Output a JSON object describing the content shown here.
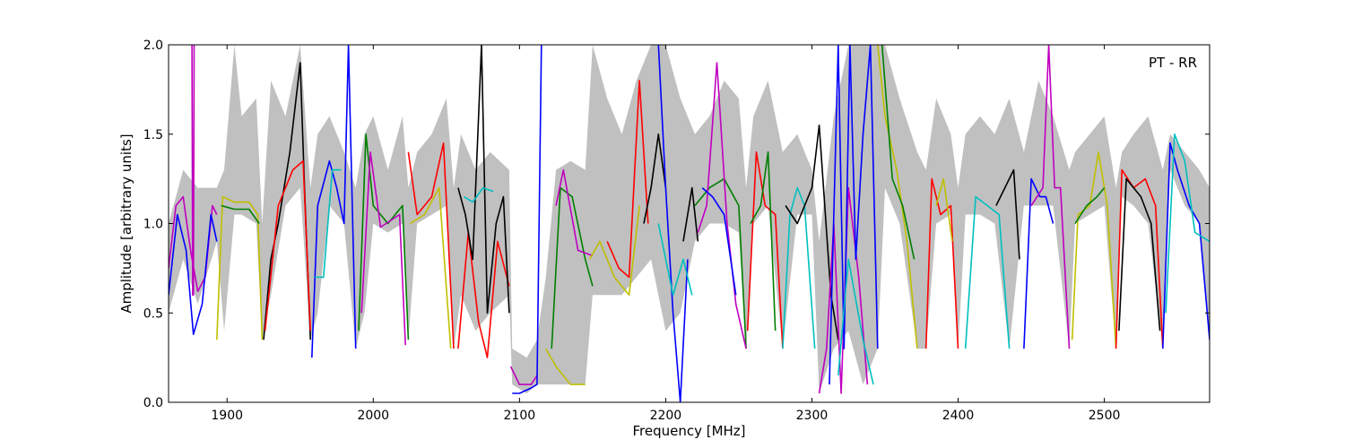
{
  "chart_data": {
    "type": "line",
    "title": "",
    "annotation": "PT - RR",
    "xlabel": "Frequency [MHz]",
    "ylabel": "Amplitude [arbitrary units]",
    "xlim": [
      1860,
      2572
    ],
    "ylim": [
      0.0,
      2.0
    ],
    "x_ticks": [
      1900,
      2000,
      2100,
      2200,
      2300,
      2400,
      2500
    ],
    "y_ticks": [
      0.0,
      0.5,
      1.0,
      1.5,
      2.0
    ],
    "x_tick_labels": [
      "1900",
      "2000",
      "2100",
      "2200",
      "2300",
      "2400",
      "2500"
    ],
    "y_tick_labels": [
      "0.0",
      "0.5",
      "1.0",
      "1.5",
      "2.0"
    ],
    "grid": false,
    "legend": "none",
    "band_color": "#c0c0c0",
    "series": [
      {
        "color": "#bf00bf",
        "x": [
          1860,
          1865,
          1870,
          1875,
          1880,
          1885,
          1890,
          1893
        ],
        "y": [
          0.75,
          1.1,
          1.15,
          0.85,
          0.62,
          0.7,
          1.1,
          1.05
        ]
      },
      {
        "color": "#0000ff",
        "x": [
          1860,
          1866,
          1872,
          1877,
          1883,
          1889,
          1893
        ],
        "y": [
          0.6,
          1.05,
          0.85,
          0.38,
          0.55,
          1.05,
          0.9
        ]
      },
      {
        "color": "#bf00bf",
        "x": [
          1876,
          1876.5,
          1877,
          1877.5
        ],
        "y": [
          2.0,
          0.6,
          0.6,
          2.0
        ]
      },
      {
        "color": "#bfbf00",
        "x": [
          1893,
          1897,
          1905,
          1915,
          1921,
          1924
        ],
        "y": [
          0.35,
          1.15,
          1.12,
          1.12,
          1.05,
          0.35
        ]
      },
      {
        "color": "#007f00",
        "x": [
          1896,
          1905,
          1915,
          1922
        ],
        "y": [
          1.1,
          1.08,
          1.08,
          1.0
        ]
      },
      {
        "color": "#000000",
        "x": [
          1925,
          1930,
          1935,
          1943,
          1950,
          1953,
          1957
        ],
        "y": [
          0.35,
          0.8,
          1.0,
          1.4,
          1.9,
          1.2,
          0.35
        ]
      },
      {
        "color": "#ff0000",
        "x": [
          1926,
          1935,
          1945,
          1952,
          1957
        ],
        "y": [
          0.4,
          1.1,
          1.3,
          1.35,
          0.4
        ]
      },
      {
        "color": "#0000ff",
        "x": [
          1958,
          1962,
          1970,
          1975,
          1980,
          1983,
          1988
        ],
        "y": [
          0.25,
          1.1,
          1.35,
          1.2,
          1.0,
          2.0,
          0.3
        ]
      },
      {
        "color": "#00bfbf",
        "x": [
          1960,
          1966,
          1972,
          1978
        ],
        "y": [
          0.7,
          0.7,
          1.3,
          1.3
        ]
      },
      {
        "color": "#007f00",
        "x": [
          1990,
          1995,
          2000,
          2010,
          2020,
          2024
        ],
        "y": [
          0.4,
          1.5,
          1.1,
          1.0,
          1.1,
          0.35
        ]
      },
      {
        "color": "#bf00bf",
        "x": [
          1992,
          1998,
          2005,
          2018,
          2022
        ],
        "y": [
          0.5,
          1.4,
          0.98,
          1.05,
          0.32
        ]
      },
      {
        "color": "#ff0000",
        "x": [
          2024,
          2030,
          2040,
          2048,
          2055
        ],
        "y": [
          1.4,
          1.05,
          1.15,
          1.45,
          0.3
        ]
      },
      {
        "color": "#bfbf00",
        "x": [
          2025,
          2035,
          2045,
          2053
        ],
        "y": [
          1.0,
          1.05,
          1.2,
          0.3
        ]
      },
      {
        "color": "#ff0000",
        "x": [
          2058,
          2065,
          2072,
          2078,
          2085,
          2093
        ],
        "y": [
          0.3,
          0.95,
          0.45,
          0.25,
          0.9,
          0.65
        ]
      },
      {
        "color": "#000000",
        "x": [
          2058,
          2063,
          2068,
          2074,
          2078,
          2084,
          2089,
          2093
        ],
        "y": [
          1.2,
          1.05,
          0.8,
          2.0,
          0.5,
          1.0,
          1.15,
          0.5
        ]
      },
      {
        "color": "#00bfbf",
        "x": [
          2062,
          2068,
          2075,
          2082
        ],
        "y": [
          1.15,
          1.12,
          1.2,
          1.18
        ]
      },
      {
        "color": "#bf00bf",
        "x": [
          2094,
          2100,
          2108,
          2112
        ],
        "y": [
          0.2,
          0.1,
          0.1,
          0.15
        ]
      },
      {
        "color": "#0000ff",
        "x": [
          2095,
          2100,
          2108,
          2112,
          2115
        ],
        "y": [
          0.05,
          0.05,
          0.08,
          0.1,
          2.0
        ]
      },
      {
        "color": "#bfbf00",
        "x": [
          2118,
          2125,
          2135,
          2145
        ],
        "y": [
          0.3,
          0.2,
          0.1,
          0.1
        ]
      },
      {
        "color": "#007f00",
        "x": [
          2122,
          2128,
          2136,
          2145,
          2150
        ],
        "y": [
          0.3,
          1.2,
          1.15,
          0.8,
          0.65
        ]
      },
      {
        "color": "#bf00bf",
        "x": [
          2125,
          2130,
          2140,
          2150
        ],
        "y": [
          1.1,
          1.3,
          0.85,
          0.82
        ]
      },
      {
        "color": "#bfbf00",
        "x": [
          2148,
          2155,
          2165,
          2175,
          2182
        ],
        "y": [
          0.8,
          0.9,
          0.7,
          0.6,
          1.1
        ]
      },
      {
        "color": "#ff0000",
        "x": [
          2160,
          2168,
          2175,
          2182,
          2188
        ],
        "y": [
          0.9,
          0.75,
          0.7,
          1.8,
          1.0
        ]
      },
      {
        "color": "#000000",
        "x": [
          2185,
          2190,
          2195,
          2200
        ],
        "y": [
          1.0,
          1.2,
          1.5,
          1.2
        ]
      },
      {
        "color": "#0000ff",
        "x": [
          2195,
          2200,
          2205,
          2210,
          2215
        ],
        "y": [
          2.0,
          1.2,
          0.5,
          0.0,
          0.8
        ]
      },
      {
        "color": "#00bfbf",
        "x": [
          2195,
          2205,
          2212,
          2218
        ],
        "y": [
          1.0,
          0.6,
          0.8,
          0.6
        ]
      },
      {
        "color": "#000000",
        "x": [
          2212,
          2218,
          2222
        ],
        "y": [
          0.9,
          1.2,
          0.9
        ]
      },
      {
        "color": "#007f00",
        "x": [
          2220,
          2230,
          2240,
          2250,
          2255
        ],
        "y": [
          1.1,
          1.2,
          1.25,
          1.1,
          0.3
        ]
      },
      {
        "color": "#bf00bf",
        "x": [
          2222,
          2228,
          2235,
          2242,
          2248,
          2255
        ],
        "y": [
          0.95,
          1.1,
          1.9,
          1.0,
          0.55,
          0.3
        ]
      },
      {
        "color": "#0000ff",
        "x": [
          2225,
          2232,
          2240,
          2248
        ],
        "y": [
          1.2,
          1.15,
          1.05,
          0.6
        ]
      },
      {
        "color": "#ff0000",
        "x": [
          2256,
          2262,
          2268,
          2275,
          2280
        ],
        "y": [
          0.4,
          1.4,
          1.1,
          1.05,
          0.3
        ]
      },
      {
        "color": "#007f00",
        "x": [
          2258,
          2265,
          2270,
          2275
        ],
        "y": [
          1.0,
          1.1,
          1.4,
          0.4
        ]
      },
      {
        "color": "#00bfbf",
        "x": [
          2280,
          2285,
          2290,
          2295,
          2302
        ],
        "y": [
          0.3,
          1.05,
          1.2,
          1.1,
          0.3
        ]
      },
      {
        "color": "#000000",
        "x": [
          2282,
          2290,
          2300,
          2305,
          2313,
          2318
        ],
        "y": [
          1.1,
          1.0,
          1.2,
          1.55,
          0.6,
          0.35
        ]
      },
      {
        "color": "#bf00bf",
        "x": [
          2305,
          2310,
          2315,
          2320,
          2325,
          2332,
          2338
        ],
        "y": [
          0.05,
          0.3,
          1.0,
          0.05,
          1.2,
          0.7,
          0.1
        ]
      },
      {
        "color": "#0000ff",
        "x": [
          2312,
          2318,
          2322,
          2326,
          2330,
          2335,
          2340,
          2345
        ],
        "y": [
          0.1,
          2.0,
          0.3,
          2.0,
          0.8,
          1.5,
          2.0,
          0.3
        ]
      },
      {
        "color": "#00bfbf",
        "x": [
          2318,
          2325,
          2335,
          2342
        ],
        "y": [
          0.15,
          0.8,
          0.35,
          0.1
        ]
      },
      {
        "color": "#bfbf00",
        "x": [
          2345,
          2350,
          2358,
          2365,
          2372
        ],
        "y": [
          2.0,
          1.6,
          1.3,
          0.9,
          0.3
        ]
      },
      {
        "color": "#007f00",
        "x": [
          2348,
          2355,
          2362,
          2370
        ],
        "y": [
          2.0,
          1.25,
          1.1,
          0.8
        ]
      },
      {
        "color": "#ff0000",
        "x": [
          2378,
          2382,
          2388,
          2395,
          2400
        ],
        "y": [
          0.3,
          1.25,
          1.05,
          1.1,
          0.3
        ]
      },
      {
        "color": "#bfbf00",
        "x": [
          2385,
          2390,
          2396
        ],
        "y": [
          1.1,
          1.25,
          0.9
        ]
      },
      {
        "color": "#00bfbf",
        "x": [
          2405,
          2412,
          2420,
          2428,
          2435
        ],
        "y": [
          0.3,
          1.15,
          1.1,
          1.05,
          0.3
        ]
      },
      {
        "color": "#000000",
        "x": [
          2426,
          2432,
          2438,
          2442
        ],
        "y": [
          1.1,
          1.2,
          1.3,
          0.8
        ]
      },
      {
        "color": "#0000ff",
        "x": [
          2445,
          2450,
          2456,
          2460,
          2465
        ],
        "y": [
          0.3,
          1.25,
          1.15,
          1.15,
          1.0
        ]
      },
      {
        "color": "#bf00bf",
        "x": [
          2450,
          2458,
          2462,
          2466,
          2470,
          2476
        ],
        "y": [
          1.1,
          1.2,
          2.0,
          1.2,
          1.2,
          0.3
        ]
      },
      {
        "color": "#bfbf00",
        "x": [
          2478,
          2482,
          2490,
          2496,
          2502,
          2508
        ],
        "y": [
          0.35,
          1.05,
          1.1,
          1.4,
          1.1,
          0.3
        ]
      },
      {
        "color": "#007f00",
        "x": [
          2480,
          2488,
          2495,
          2500
        ],
        "y": [
          1.0,
          1.1,
          1.15,
          1.2
        ]
      },
      {
        "color": "#ff0000",
        "x": [
          2508,
          2512,
          2520,
          2528,
          2535,
          2540
        ],
        "y": [
          0.3,
          1.3,
          1.2,
          1.25,
          1.1,
          0.3
        ]
      },
      {
        "color": "#000000",
        "x": [
          2510,
          2515,
          2525,
          2532,
          2538
        ],
        "y": [
          0.4,
          1.25,
          1.15,
          1.0,
          0.4
        ]
      },
      {
        "color": "#0000ff",
        "x": [
          2540,
          2545,
          2550,
          2558,
          2565,
          2572
        ],
        "y": [
          0.3,
          1.45,
          1.3,
          1.1,
          1.0,
          0.35
        ]
      },
      {
        "color": "#00bfbf",
        "x": [
          2542,
          2548,
          2555,
          2562,
          2572
        ],
        "y": [
          0.5,
          1.5,
          1.35,
          0.95,
          0.9
        ]
      }
    ],
    "band": {
      "x": [
        1860,
        1870,
        1880,
        1893,
        1898,
        1905,
        1910,
        1920,
        1924,
        1930,
        1940,
        1950,
        1957,
        1962,
        1970,
        1980,
        1988,
        1994,
        2000,
        2010,
        2020,
        2024,
        2030,
        2040,
        2050,
        2055,
        2060,
        2070,
        2080,
        2093,
        2095,
        2105,
        2112,
        2118,
        2125,
        2135,
        2145,
        2150,
        2160,
        2170,
        2180,
        2190,
        2200,
        2210,
        2220,
        2230,
        2240,
        2250,
        2255,
        2260,
        2270,
        2280,
        2290,
        2300,
        2305,
        2315,
        2325,
        2335,
        2345,
        2350,
        2360,
        2372,
        2378,
        2385,
        2395,
        2400,
        2405,
        2415,
        2425,
        2435,
        2445,
        2455,
        2465,
        2476,
        2480,
        2490,
        2500,
        2508,
        2512,
        2520,
        2530,
        2540,
        2545,
        2555,
        2565,
        2572
      ],
      "upper": [
        1.0,
        1.3,
        1.2,
        1.2,
        1.3,
        2.0,
        1.6,
        1.7,
        1.0,
        1.8,
        1.6,
        2.0,
        1.2,
        1.5,
        1.6,
        1.4,
        1.2,
        1.5,
        1.6,
        1.3,
        1.6,
        1.2,
        1.4,
        1.5,
        1.7,
        1.2,
        1.5,
        1.3,
        1.4,
        1.3,
        0.3,
        0.25,
        0.35,
        0.7,
        1.3,
        1.35,
        1.3,
        2.0,
        1.7,
        1.5,
        1.8,
        2.0,
        2.0,
        1.7,
        1.5,
        1.6,
        1.8,
        1.7,
        1.2,
        1.6,
        1.8,
        1.4,
        1.5,
        1.3,
        0.9,
        1.6,
        2.0,
        2.0,
        2.0,
        2.0,
        1.7,
        1.4,
        1.3,
        1.7,
        1.5,
        1.2,
        1.5,
        1.6,
        1.5,
        1.7,
        1.4,
        1.8,
        1.6,
        1.3,
        1.4,
        1.5,
        1.6,
        1.2,
        1.4,
        1.5,
        1.6,
        1.3,
        1.5,
        1.4,
        1.3,
        1.2
      ],
      "lower": [
        0.5,
        0.8,
        0.55,
        0.9,
        0.4,
        1.05,
        1.05,
        1.0,
        0.35,
        0.6,
        1.1,
        1.2,
        0.35,
        0.5,
        1.1,
        1.0,
        0.3,
        0.5,
        1.0,
        0.95,
        1.0,
        0.35,
        1.0,
        1.05,
        1.1,
        0.3,
        0.6,
        0.4,
        0.5,
        0.6,
        0.1,
        0.05,
        0.1,
        0.1,
        0.1,
        0.1,
        0.1,
        0.6,
        0.6,
        0.6,
        0.7,
        0.8,
        0.4,
        0.5,
        0.9,
        1.0,
        1.0,
        0.95,
        0.3,
        1.0,
        1.1,
        0.3,
        1.05,
        1.05,
        0.05,
        0.3,
        0.4,
        0.1,
        0.3,
        1.2,
        1.0,
        0.3,
        0.3,
        1.0,
        1.05,
        0.3,
        1.05,
        1.05,
        1.0,
        0.3,
        1.1,
        1.1,
        1.1,
        0.3,
        1.0,
        1.05,
        1.1,
        0.3,
        1.15,
        1.1,
        1.0,
        0.3,
        1.3,
        1.1,
        1.0,
        0.35
      ]
    }
  }
}
